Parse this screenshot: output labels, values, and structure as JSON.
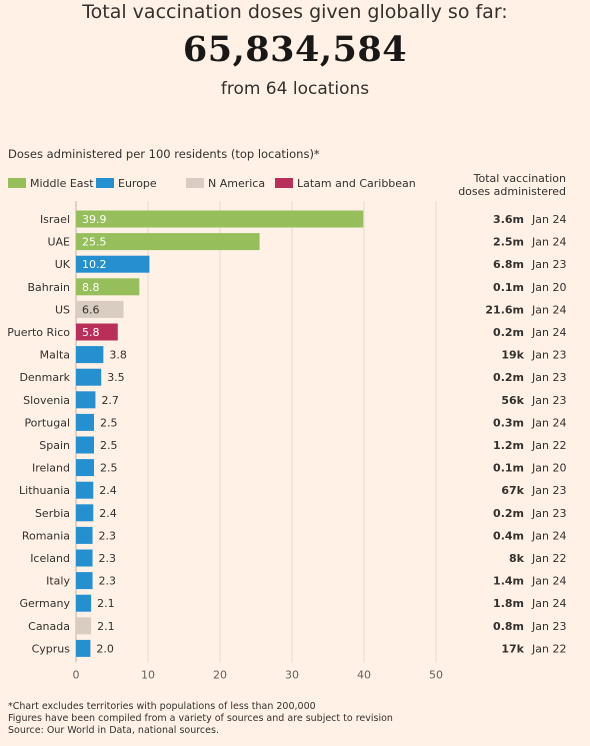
{
  "header": {
    "title": "Total vaccination doses given globally so far:",
    "total": "65,834,584",
    "subtitle": "from 64 locations"
  },
  "chart_subtitle": "Doses administered per 100 residents (top locations)*",
  "column_header": [
    "Total vaccination",
    "doses administered"
  ],
  "legend": [
    {
      "label": "Middle East",
      "color": "#96be5a"
    },
    {
      "label": "Europe",
      "color": "#2490d0"
    },
    {
      "label": "N America",
      "color": "#d9cdc1"
    },
    {
      "label": "Latam and Caribbean",
      "color": "#b8305a"
    }
  ],
  "chart_data": {
    "type": "bar",
    "orientation": "horizontal",
    "xlim": [
      0,
      50
    ],
    "xticks": [
      0,
      10,
      20,
      30,
      40,
      50
    ],
    "grid": true,
    "legend_position": "top",
    "rows": [
      {
        "location": "Israel",
        "value": 39.9,
        "region": "Middle East",
        "total": "3.6m",
        "date": "Jan 24"
      },
      {
        "location": "UAE",
        "value": 25.5,
        "region": "Middle East",
        "total": "2.5m",
        "date": "Jan 24"
      },
      {
        "location": "UK",
        "value": 10.2,
        "region": "Europe",
        "total": "6.8m",
        "date": "Jan 23"
      },
      {
        "location": "Bahrain",
        "value": 8.8,
        "region": "Middle East",
        "total": "0.1m",
        "date": "Jan 20"
      },
      {
        "location": "US",
        "value": 6.6,
        "region": "N America",
        "total": "21.6m",
        "date": "Jan 24"
      },
      {
        "location": "Puerto Rico",
        "value": 5.8,
        "region": "Latam and Caribbean",
        "total": "0.2m",
        "date": "Jan 24"
      },
      {
        "location": "Malta",
        "value": 3.8,
        "region": "Europe",
        "total": "19k",
        "date": "Jan 23"
      },
      {
        "location": "Denmark",
        "value": 3.5,
        "region": "Europe",
        "total": "0.2m",
        "date": "Jan 23"
      },
      {
        "location": "Slovenia",
        "value": 2.7,
        "region": "Europe",
        "total": "56k",
        "date": "Jan 23"
      },
      {
        "location": "Portugal",
        "value": 2.5,
        "region": "Europe",
        "total": "0.3m",
        "date": "Jan 24"
      },
      {
        "location": "Spain",
        "value": 2.5,
        "region": "Europe",
        "total": "1.2m",
        "date": "Jan 22"
      },
      {
        "location": "Ireland",
        "value": 2.5,
        "region": "Europe",
        "total": "0.1m",
        "date": "Jan 20"
      },
      {
        "location": "Lithuania",
        "value": 2.4,
        "region": "Europe",
        "total": "67k",
        "date": "Jan 23"
      },
      {
        "location": "Serbia",
        "value": 2.4,
        "region": "Europe",
        "total": "0.2m",
        "date": "Jan 23"
      },
      {
        "location": "Romania",
        "value": 2.3,
        "region": "Europe",
        "total": "0.4m",
        "date": "Jan 24"
      },
      {
        "location": "Iceland",
        "value": 2.3,
        "region": "Europe",
        "total": "8k",
        "date": "Jan 22"
      },
      {
        "location": "Italy",
        "value": 2.3,
        "region": "Europe",
        "total": "1.4m",
        "date": "Jan 24"
      },
      {
        "location": "Germany",
        "value": 2.1,
        "region": "Europe",
        "total": "1.8m",
        "date": "Jan 24"
      },
      {
        "location": "Canada",
        "value": 2.1,
        "region": "N America",
        "total": "0.8m",
        "date": "Jan 23"
      },
      {
        "location": "Cyprus",
        "value": 2.0,
        "region": "Europe",
        "total": "17k",
        "date": "Jan 22"
      }
    ]
  },
  "footnotes": [
    "*Chart excludes territories with populations of less than 200,000",
    "Figures have been compiled from a variety of sources and are subject to revision",
    "Source: Our World in Data, national sources."
  ]
}
